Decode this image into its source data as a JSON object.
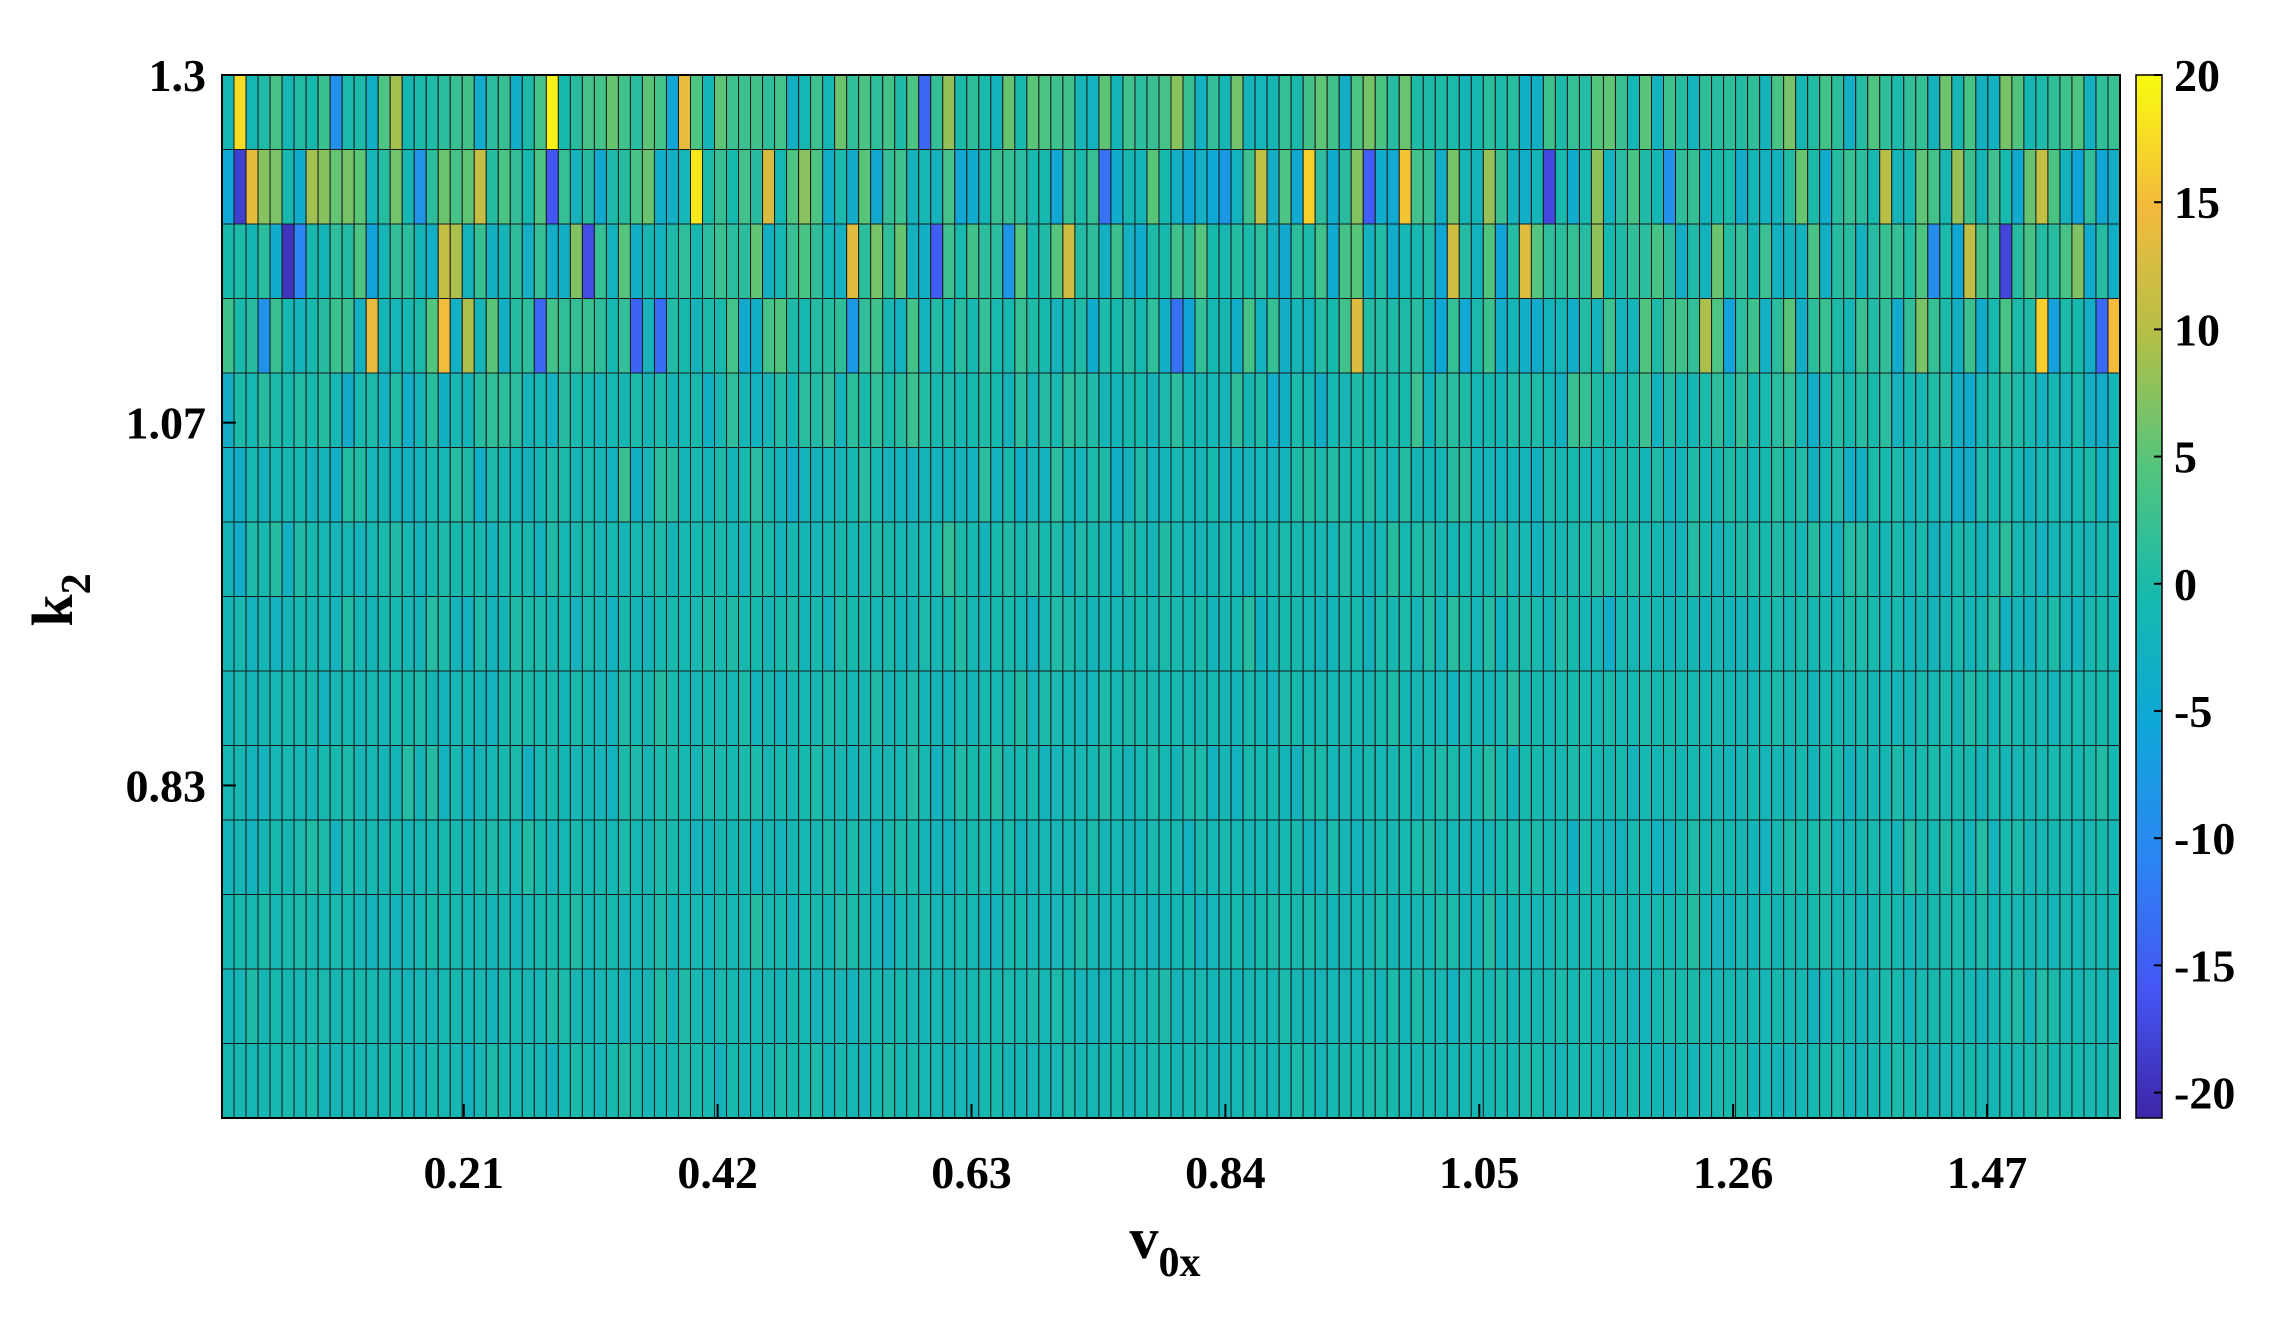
{
  "chart_data": {
    "type": "heatmap",
    "title": "",
    "xlabel": "v",
    "xlabel_sub": "0x",
    "ylabel": "k",
    "ylabel_sub": "2",
    "x_range": [
      0.01,
      1.58
    ],
    "y_range": [
      0.61,
      1.3
    ],
    "n_cols": 158,
    "n_rows": 14,
    "x_ticks": [
      {
        "value": 0.21,
        "label": "0.21"
      },
      {
        "value": 0.42,
        "label": "0.42"
      },
      {
        "value": 0.63,
        "label": "0.63"
      },
      {
        "value": 0.84,
        "label": "0.84"
      },
      {
        "value": 1.05,
        "label": "1.05"
      },
      {
        "value": 1.26,
        "label": "1.26"
      },
      {
        "value": 1.47,
        "label": "1.47"
      }
    ],
    "y_ticks": [
      {
        "value": 1.3,
        "label": "1.3"
      },
      {
        "value": 1.07,
        "label": "1.07"
      },
      {
        "value": 0.83,
        "label": "0.83"
      }
    ],
    "colorbar": {
      "colormap": "parula",
      "range": [
        -21,
        20
      ],
      "ticks": [
        {
          "value": 20,
          "label": "20"
        },
        {
          "value": 15,
          "label": "15"
        },
        {
          "value": 10,
          "label": "10"
        },
        {
          "value": 5,
          "label": "5"
        },
        {
          "value": 0,
          "label": "0"
        },
        {
          "value": -5,
          "label": "-5"
        },
        {
          "value": -10,
          "label": "-10"
        },
        {
          "value": -15,
          "label": "-15"
        },
        {
          "value": -20,
          "label": "-20"
        }
      ]
    },
    "row_amplitude": [
      9,
      12,
      10,
      8,
      5,
      4,
      3,
      3,
      2.5,
      2.5,
      2.5,
      2.2,
      2.2,
      2
    ],
    "row_mean": [
      1.5,
      0.5,
      0.5,
      0,
      -0.5,
      -1,
      -1,
      -1,
      -1,
      -1,
      -1,
      -1,
      -1,
      -1
    ]
  }
}
